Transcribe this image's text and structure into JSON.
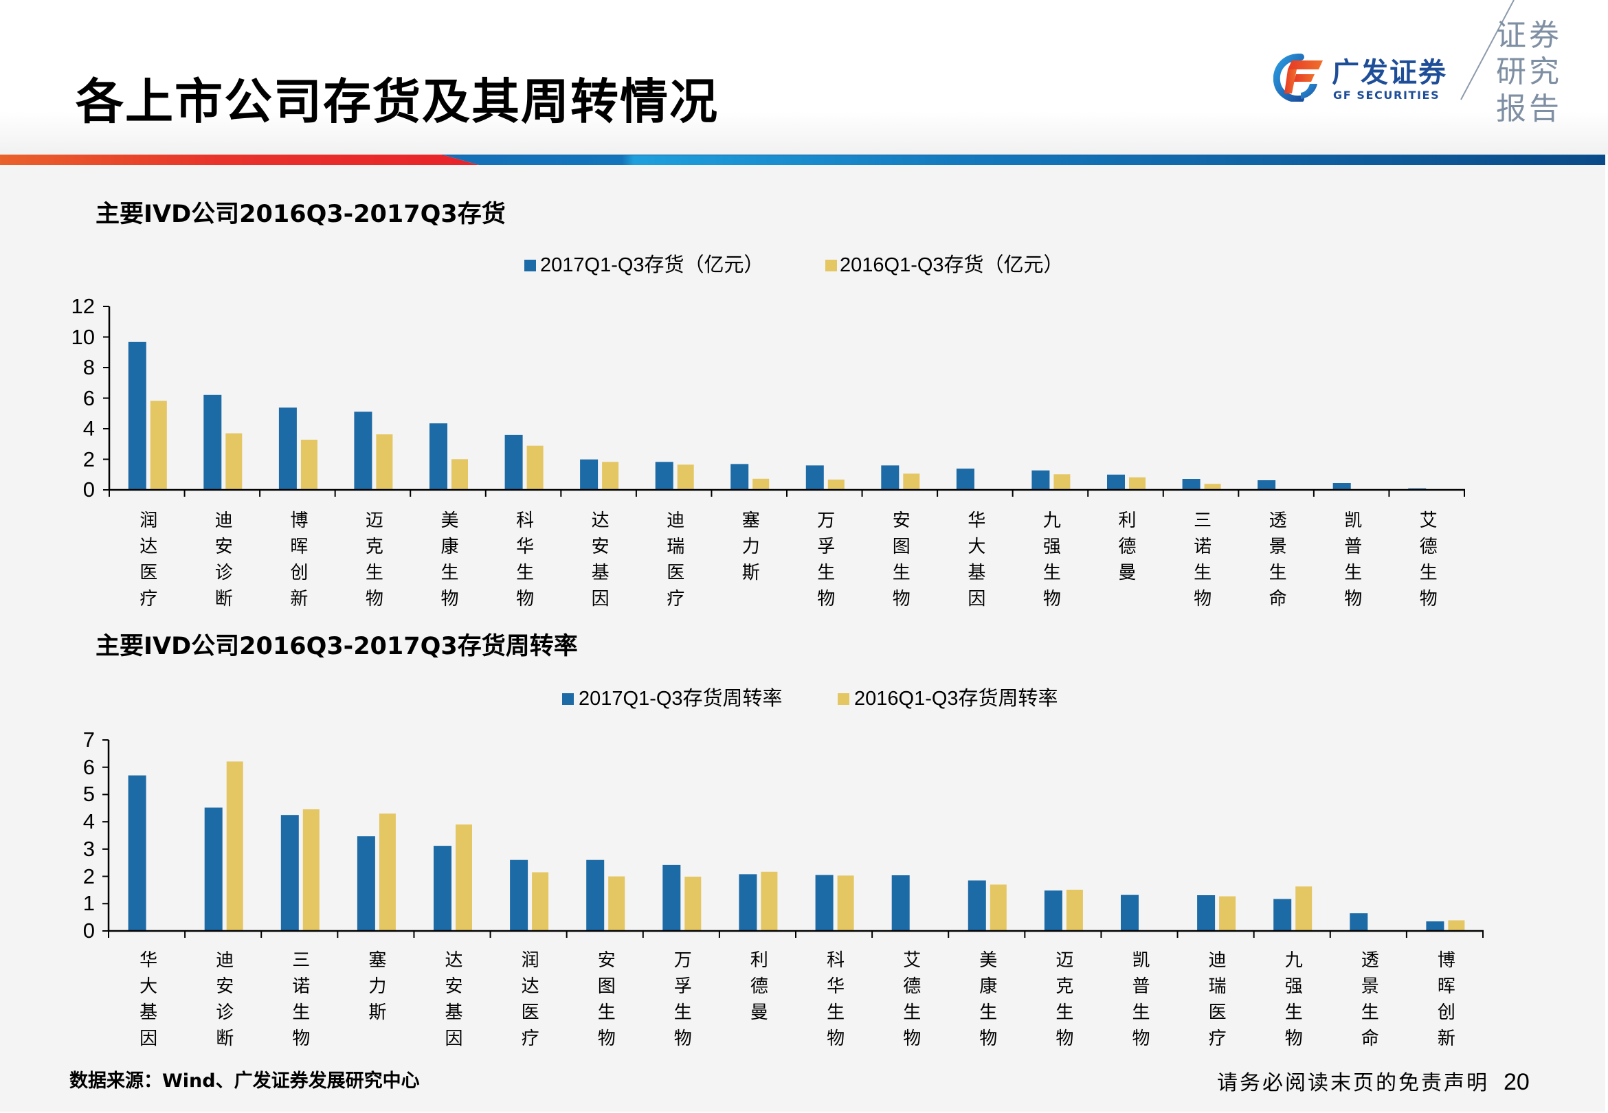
{
  "header": {
    "title": "各上市公司存货及其周转情况",
    "logo": {
      "name_cn": "广发证券",
      "name_en": "GF SECURITIES"
    },
    "tagline_lines": [
      "证券",
      "研究",
      "报告"
    ]
  },
  "colors": {
    "stripe_red": "#e8232a",
    "stripe_orange": "#e9612b",
    "stripe_blue": "#1478bd",
    "stripe_dark_blue": "#0b4a88",
    "brand_blue": "#1f4e99",
    "series_2017": "#1c6aa6",
    "series_2016": "#e4c663"
  },
  "chart_data": [
    {
      "type": "bar",
      "title": "主要IVD公司2016Q3-2017Q3存货",
      "xlabel": "",
      "ylabel": "",
      "categories": [
        "润达医疗",
        "迪安诊断",
        "博晖创新",
        "迈克生物",
        "美康生物",
        "科华生物",
        "达安基因",
        "迪瑞医疗",
        "塞力斯",
        "万孚生物",
        "安图生物",
        "华大基因",
        "九强生物",
        "利德曼",
        "三诺生物",
        "透景生命",
        "凯普生物",
        "艾德生物"
      ],
      "series": [
        {
          "name": "2017Q1-Q3存货（亿元）",
          "color": "#1c6aa6",
          "values": [
            9.67,
            6.21,
            5.38,
            5.11,
            4.35,
            3.6,
            1.99,
            1.83,
            1.69,
            1.6,
            1.6,
            1.39,
            1.27,
            1.0,
            0.72,
            0.63,
            0.45,
            0.1
          ]
        },
        {
          "name": "2016Q1-Q3存货（亿元）",
          "color": "#e4c663",
          "values": [
            5.82,
            3.7,
            3.28,
            3.63,
            2.01,
            2.89,
            1.83,
            1.65,
            0.73,
            0.67,
            1.06,
            null,
            1.02,
            0.82,
            0.39,
            null,
            null,
            null
          ]
        }
      ],
      "ylim": [
        0,
        12
      ],
      "yticks": [
        0,
        2,
        4,
        6,
        8,
        10,
        12
      ],
      "grid": false,
      "legend": "top-center"
    },
    {
      "type": "bar",
      "title": "主要IVD公司2016Q3-2017Q3存货周转率",
      "xlabel": "",
      "ylabel": "",
      "categories": [
        "华大基因",
        "迪安诊断",
        "三诺生物",
        "塞力斯",
        "达安基因",
        "润达医疗",
        "安图生物",
        "万孚生物",
        "利德曼",
        "科华生物",
        "艾德生物",
        "美康生物",
        "迈克生物",
        "凯普生物",
        "迪瑞医疗",
        "九强生物",
        "透景生命",
        "博晖创新"
      ],
      "series": [
        {
          "name": "2017Q1-Q3存货周转率",
          "color": "#1c6aa6",
          "values": [
            5.7,
            4.52,
            4.25,
            3.47,
            3.12,
            2.6,
            2.6,
            2.42,
            2.08,
            2.05,
            2.04,
            1.85,
            1.48,
            1.32,
            1.31,
            1.17,
            0.65,
            0.35
          ]
        },
        {
          "name": "2016Q1-Q3存货周转率",
          "color": "#e4c663",
          "values": [
            null,
            6.21,
            4.46,
            4.3,
            3.9,
            2.15,
            2.0,
            1.99,
            2.17,
            2.03,
            null,
            1.7,
            1.51,
            null,
            1.27,
            1.63,
            null,
            0.39
          ]
        }
      ],
      "ylim": [
        0,
        7
      ],
      "yticks": [
        0,
        1,
        2,
        3,
        4,
        5,
        6,
        7
      ],
      "grid": false,
      "legend": "top-center"
    }
  ],
  "footer": {
    "source": "数据来源：Wind、广发证券发展研究中心",
    "disclaimer": "请务必阅读末页的免责声明",
    "page_number": "20"
  }
}
